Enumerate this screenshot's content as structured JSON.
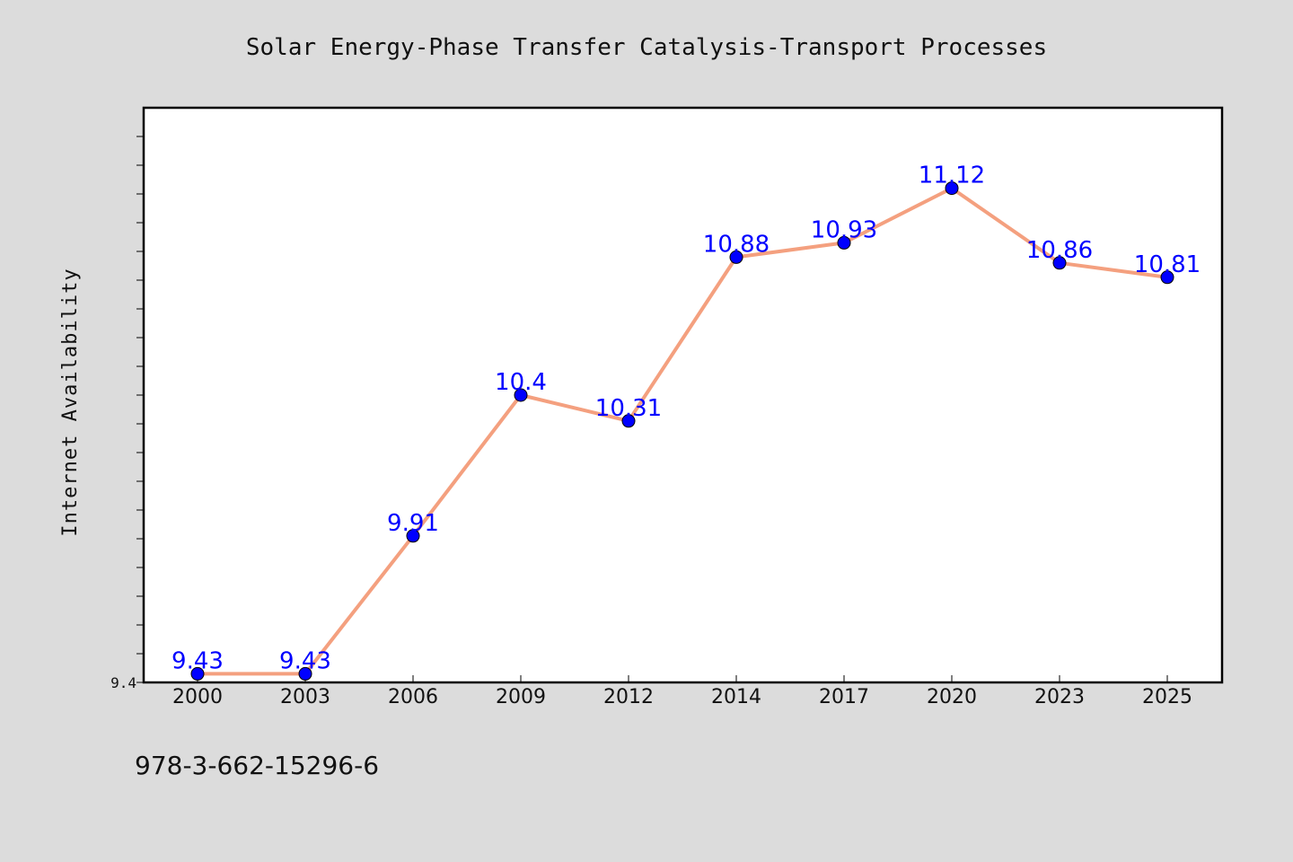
{
  "colors": {
    "background": "#dcdcdc",
    "plot_background": "#ffffff",
    "line": "#f4a07f",
    "marker": "#0000ff",
    "data_label": "#0000ff"
  },
  "footer": {
    "isbn": "978-3-662-15296-6"
  },
  "chart_data": {
    "type": "line",
    "title": "Solar Energy-Phase Transfer Catalysis-Transport Processes",
    "xlabel": "",
    "ylabel": "Internet Availability",
    "categories": [
      "2000",
      "2003",
      "2006",
      "2009",
      "2012",
      "2014",
      "2017",
      "2020",
      "2023",
      "2025"
    ],
    "series": [
      {
        "values": [
          9.43,
          9.43,
          9.91,
          10.4,
          10.31,
          10.88,
          10.93,
          11.12,
          10.86,
          10.81
        ],
        "labels": [
          "9.43",
          "9.43",
          "9.91",
          "10.4",
          "10.31",
          "10.88",
          "10.93",
          "11.12",
          "10.86",
          "10.81"
        ]
      }
    ],
    "ylim": [
      9.4,
      11.4
    ],
    "yticks_labeled": [
      "9.4"
    ],
    "grid": false,
    "legend": "none"
  }
}
